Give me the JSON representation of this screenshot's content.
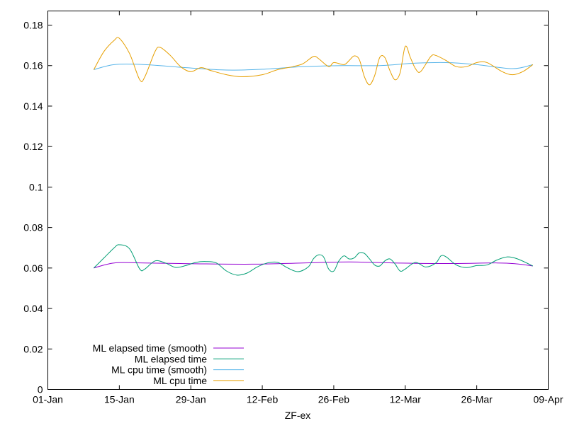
{
  "chart_data": {
    "type": "line",
    "title": "",
    "xlabel": "ZF-ex",
    "ylabel": "",
    "x_axis": {
      "type": "date",
      "min": "2022-01-01",
      "max": "2022-04-09",
      "ticks": [
        {
          "date": "2022-01-01",
          "label": "01-Jan"
        },
        {
          "date": "2022-01-15",
          "label": "15-Jan"
        },
        {
          "date": "2022-01-29",
          "label": "29-Jan"
        },
        {
          "date": "2022-02-12",
          "label": "12-Feb"
        },
        {
          "date": "2022-02-26",
          "label": "26-Feb"
        },
        {
          "date": "2022-03-12",
          "label": "12-Mar"
        },
        {
          "date": "2022-03-26",
          "label": "26-Mar"
        },
        {
          "date": "2022-04-09",
          "label": "09-Apr"
        }
      ]
    },
    "y_axis": {
      "min": 0,
      "max": 0.187,
      "ticks": [
        {
          "value": 0,
          "label": "0"
        },
        {
          "value": 0.02,
          "label": "0.02"
        },
        {
          "value": 0.04,
          "label": "0.04"
        },
        {
          "value": 0.06,
          "label": "0.06"
        },
        {
          "value": 0.08,
          "label": "0.08"
        },
        {
          "value": 0.1,
          "label": "0.1"
        },
        {
          "value": 0.12,
          "label": "0.12"
        },
        {
          "value": 0.14,
          "label": "0.14"
        },
        {
          "value": 0.16,
          "label": "0.16"
        },
        {
          "value": 0.18,
          "label": "0.18"
        }
      ]
    },
    "grid": false,
    "legend_position": "bottom-left",
    "series": [
      {
        "name": "ML elapsed time (smooth)",
        "color": "#9400d3",
        "points": [
          [
            "2022-01-10",
            0.06
          ],
          [
            "2022-01-14",
            0.0625
          ],
          [
            "2022-01-20",
            0.0625
          ],
          [
            "2022-01-30",
            0.0621
          ],
          [
            "2022-02-10",
            0.0619
          ],
          [
            "2022-02-20",
            0.0625
          ],
          [
            "2022-03-01",
            0.063
          ],
          [
            "2022-03-10",
            0.0625
          ],
          [
            "2022-03-20",
            0.0622
          ],
          [
            "2022-03-30",
            0.0625
          ],
          [
            "2022-04-03",
            0.062
          ],
          [
            "2022-04-06",
            0.061
          ]
        ]
      },
      {
        "name": "ML elapsed time",
        "color": "#009e73",
        "points": [
          [
            "2022-01-10",
            0.06
          ],
          [
            "2022-01-12",
            0.065
          ],
          [
            "2022-01-14",
            0.07
          ],
          [
            "2022-01-15",
            0.0715
          ],
          [
            "2022-01-17",
            0.0695
          ],
          [
            "2022-01-19",
            0.0595
          ],
          [
            "2022-01-20",
            0.0595
          ],
          [
            "2022-01-22",
            0.0635
          ],
          [
            "2022-01-24",
            0.0625
          ],
          [
            "2022-01-26",
            0.0603
          ],
          [
            "2022-01-28",
            0.0612
          ],
          [
            "2022-01-30",
            0.0628
          ],
          [
            "2022-02-01",
            0.0632
          ],
          [
            "2022-02-03",
            0.0625
          ],
          [
            "2022-02-05",
            0.0585
          ],
          [
            "2022-02-07",
            0.0565
          ],
          [
            "2022-02-09",
            0.0575
          ],
          [
            "2022-02-11",
            0.0605
          ],
          [
            "2022-02-13",
            0.0625
          ],
          [
            "2022-02-15",
            0.0628
          ],
          [
            "2022-02-17",
            0.06
          ],
          [
            "2022-02-19",
            0.0582
          ],
          [
            "2022-02-21",
            0.0605
          ],
          [
            "2022-02-22",
            0.0645
          ],
          [
            "2022-02-23",
            0.0665
          ],
          [
            "2022-02-24",
            0.0655
          ],
          [
            "2022-02-25",
            0.0595
          ],
          [
            "2022-02-26",
            0.0585
          ],
          [
            "2022-02-27",
            0.0635
          ],
          [
            "2022-02-28",
            0.066
          ],
          [
            "2022-03-01",
            0.0645
          ],
          [
            "2022-03-02",
            0.065
          ],
          [
            "2022-03-03",
            0.0675
          ],
          [
            "2022-03-04",
            0.0672
          ],
          [
            "2022-03-05",
            0.0645
          ],
          [
            "2022-03-06",
            0.0615
          ],
          [
            "2022-03-07",
            0.061
          ],
          [
            "2022-03-08",
            0.0635
          ],
          [
            "2022-03-09",
            0.0645
          ],
          [
            "2022-03-10",
            0.062
          ],
          [
            "2022-03-11",
            0.0585
          ],
          [
            "2022-03-12",
            0.0595
          ],
          [
            "2022-03-14",
            0.0628
          ],
          [
            "2022-03-16",
            0.0605
          ],
          [
            "2022-03-18",
            0.0625
          ],
          [
            "2022-03-19",
            0.066
          ],
          [
            "2022-03-20",
            0.0655
          ],
          [
            "2022-03-22",
            0.0615
          ],
          [
            "2022-03-24",
            0.0602
          ],
          [
            "2022-03-26",
            0.0612
          ],
          [
            "2022-03-28",
            0.0615
          ],
          [
            "2022-03-30",
            0.064
          ],
          [
            "2022-04-01",
            0.0655
          ],
          [
            "2022-04-03",
            0.0645
          ],
          [
            "2022-04-06",
            0.061
          ]
        ]
      },
      {
        "name": "ML cpu time (smooth)",
        "color": "#56b4e9",
        "points": [
          [
            "2022-01-10",
            0.158
          ],
          [
            "2022-01-14",
            0.1605
          ],
          [
            "2022-01-20",
            0.1605
          ],
          [
            "2022-01-28",
            0.159
          ],
          [
            "2022-02-05",
            0.1578
          ],
          [
            "2022-02-12",
            0.1582
          ],
          [
            "2022-02-20",
            0.1595
          ],
          [
            "2022-02-28",
            0.16
          ],
          [
            "2022-03-07",
            0.16
          ],
          [
            "2022-03-14",
            0.1612
          ],
          [
            "2022-03-20",
            0.1615
          ],
          [
            "2022-03-26",
            0.1605
          ],
          [
            "2022-04-02",
            0.1585
          ],
          [
            "2022-04-06",
            0.1605
          ]
        ]
      },
      {
        "name": "ML cpu time",
        "color": "#e69f00",
        "points": [
          [
            "2022-01-10",
            0.158
          ],
          [
            "2022-01-12",
            0.167
          ],
          [
            "2022-01-14",
            0.1725
          ],
          [
            "2022-01-15",
            0.1735
          ],
          [
            "2022-01-17",
            0.166
          ],
          [
            "2022-01-19",
            0.153
          ],
          [
            "2022-01-20",
            0.1545
          ],
          [
            "2022-01-22",
            0.167
          ],
          [
            "2022-01-23",
            0.169
          ],
          [
            "2022-01-25",
            0.165
          ],
          [
            "2022-01-27",
            0.1595
          ],
          [
            "2022-01-29",
            0.157
          ],
          [
            "2022-01-31",
            0.159
          ],
          [
            "2022-02-02",
            0.1575
          ],
          [
            "2022-02-05",
            0.1555
          ],
          [
            "2022-02-08",
            0.1545
          ],
          [
            "2022-02-12",
            0.1555
          ],
          [
            "2022-02-15",
            0.158
          ],
          [
            "2022-02-18",
            0.1595
          ],
          [
            "2022-02-20",
            0.161
          ],
          [
            "2022-02-22",
            0.1645
          ],
          [
            "2022-02-23",
            0.1635
          ],
          [
            "2022-02-25",
            0.1595
          ],
          [
            "2022-02-26",
            0.1615
          ],
          [
            "2022-02-28",
            0.1605
          ],
          [
            "2022-03-01",
            0.1625
          ],
          [
            "2022-03-02",
            0.1648
          ],
          [
            "2022-03-03",
            0.163
          ],
          [
            "2022-03-04",
            0.1545
          ],
          [
            "2022-03-05",
            0.1505
          ],
          [
            "2022-03-06",
            0.155
          ],
          [
            "2022-03-07",
            0.164
          ],
          [
            "2022-03-08",
            0.164
          ],
          [
            "2022-03-09",
            0.1575
          ],
          [
            "2022-03-10",
            0.153
          ],
          [
            "2022-03-11",
            0.1565
          ],
          [
            "2022-03-12",
            0.1695
          ],
          [
            "2022-03-13",
            0.164
          ],
          [
            "2022-03-14",
            0.1585
          ],
          [
            "2022-03-15",
            0.157
          ],
          [
            "2022-03-17",
            0.1645
          ],
          [
            "2022-03-18",
            0.165
          ],
          [
            "2022-03-20",
            0.1625
          ],
          [
            "2022-03-22",
            0.1595
          ],
          [
            "2022-03-24",
            0.1595
          ],
          [
            "2022-03-26",
            0.1615
          ],
          [
            "2022-03-28",
            0.1615
          ],
          [
            "2022-03-31",
            0.157
          ],
          [
            "2022-04-02",
            0.1555
          ],
          [
            "2022-04-04",
            0.157
          ],
          [
            "2022-04-06",
            0.1605
          ]
        ]
      }
    ]
  }
}
